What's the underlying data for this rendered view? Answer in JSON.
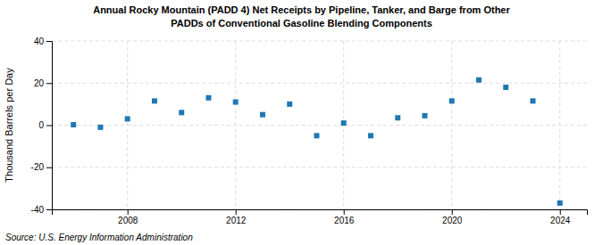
{
  "chart_data": {
    "type": "scatter",
    "title": "Annual Rocky Mountain (PADD 4) Net Receipts by Pipeline, Tanker, and Barge from Other",
    "subtitle": "PADDs of Conventional Gasoline Blending Components",
    "y_label": "Thousand Barrels per Day",
    "annotations": [
      "Source: U.S. Energy Information Administration"
    ],
    "x": [
      2006,
      2007,
      2008,
      2009,
      2010,
      2011,
      2012,
      2013,
      2014,
      2015,
      2016,
      2017,
      2018,
      2019,
      2020,
      2021,
      2022,
      2023,
      2024
    ],
    "values": [
      0.2,
      -1.0,
      3.0,
      11.5,
      6.0,
      13.0,
      11.0,
      5.0,
      10.0,
      -5.0,
      1.0,
      -5.0,
      3.5,
      4.5,
      11.5,
      21.5,
      18.0,
      11.5,
      -37.0
    ],
    "marker": "square",
    "xlim": [
      2005.2,
      2025.0
    ],
    "xticks": [
      2008,
      2012,
      2016,
      2020,
      2024
    ],
    "ylim": [
      -40,
      40
    ],
    "yticks": [
      -40,
      -20,
      0,
      20,
      40
    ],
    "grid": true
  }
}
